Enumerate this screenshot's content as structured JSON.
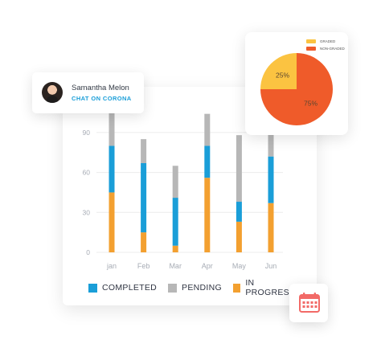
{
  "colors": {
    "completed": "#1a9ed8",
    "pending": "#b7b7b7",
    "in_progress": "#f3a030",
    "graded": "#fbc341",
    "non_graded": "#ef5b2a",
    "calendar": "#f26a67"
  },
  "user_card": {
    "name": "Samantha Melon",
    "subtitle": "CHAT ON CORONA"
  },
  "legend": {
    "completed": "COMPLETED",
    "pending": "PENDING",
    "in_progress": "IN PROGRESS"
  },
  "pie_legend": {
    "graded": "GRADED",
    "non_graded": "NON-GRADED"
  },
  "chart_data": [
    {
      "type": "bar",
      "stacked": true,
      "categories": [
        "jan",
        "Feb",
        "Mar",
        "Apr",
        "May",
        "Jun"
      ],
      "yticks": [
        "0",
        "30",
        "60",
        "90"
      ],
      "ylim": [
        0,
        105
      ],
      "grid": true,
      "series": [
        {
          "name": "IN PROGRESS",
          "key": "in_progress",
          "values": [
            45,
            15,
            5,
            56,
            23,
            37
          ]
        },
        {
          "name": "COMPLETED",
          "key": "completed",
          "values": [
            35,
            52,
            36,
            24,
            15,
            35
          ]
        },
        {
          "name": "PENDING",
          "key": "pending",
          "values": [
            25,
            18,
            24,
            24,
            50,
            23
          ]
        }
      ]
    },
    {
      "type": "pie",
      "labels": [
        "GRADED",
        "NON-GRADED"
      ],
      "values": [
        25,
        75
      ],
      "value_labels": [
        "25%",
        "75%"
      ]
    }
  ],
  "icons": {
    "calendar": "calendar-icon"
  }
}
